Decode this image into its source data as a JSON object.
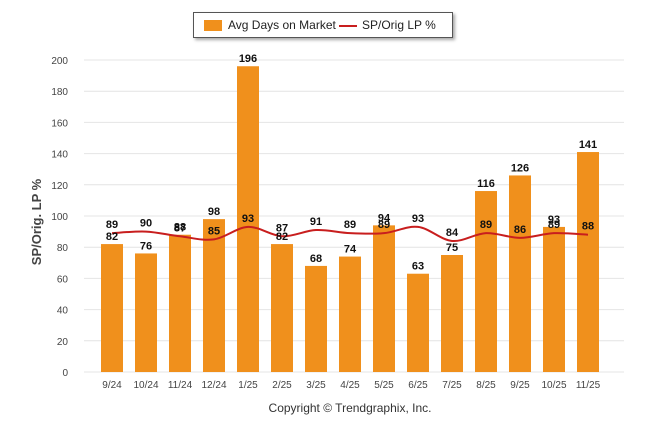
{
  "legend": {
    "bar_label": "Avg Days on Market",
    "line_label": "SP/Orig LP %"
  },
  "copyright": "Copyright © Trendgraphix, Inc.",
  "colors": {
    "bar": "#f0901c",
    "line": "#c81e1e",
    "grid": "#e4e4e4",
    "axis_text": "#444444"
  },
  "chart_data": {
    "type": "bar",
    "title": "",
    "xlabel": "",
    "ylabel": "SP/Orig. LP %",
    "ylim": [
      0,
      200
    ],
    "yticks": [
      0,
      20,
      40,
      60,
      80,
      100,
      120,
      140,
      160,
      180,
      200
    ],
    "grid": true,
    "legend_position": "top-center",
    "categories": [
      "9/24",
      "10/24",
      "11/24",
      "12/24",
      "1/25",
      "2/25",
      "3/25",
      "4/25",
      "5/25",
      "6/25",
      "7/25",
      "8/25",
      "9/25",
      "10/25",
      "11/25"
    ],
    "series": [
      {
        "name": "Avg Days on Market",
        "kind": "bar",
        "values": [
          82,
          76,
          88,
          98,
          196,
          82,
          68,
          74,
          94,
          63,
          75,
          116,
          126,
          93,
          141
        ]
      },
      {
        "name": "SP/Orig LP %",
        "kind": "line",
        "values": [
          89,
          90,
          87,
          85,
          93,
          87,
          91,
          89,
          89,
          93,
          84,
          89,
          86,
          89,
          88
        ]
      }
    ]
  }
}
